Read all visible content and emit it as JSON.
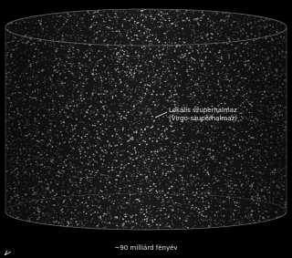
{
  "annotation": {
    "line1": "Lokális szuperhalmaz",
    "line2": "(Virgo-szuperhalmaz)"
  },
  "scale_label": "~90 milliárd fényév"
}
